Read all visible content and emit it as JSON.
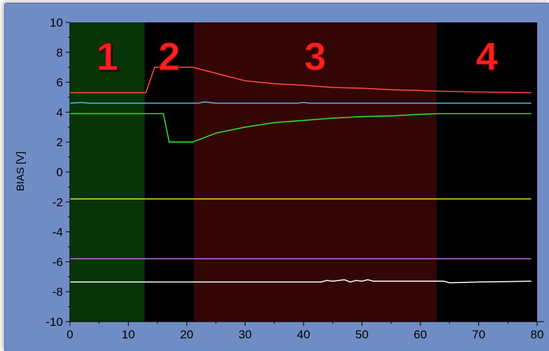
{
  "chart_data": {
    "type": "line",
    "xlabel": "",
    "ylabel": "BIAS [V]",
    "xlim": [
      0,
      80
    ],
    "ylim": [
      -10,
      10
    ],
    "x_ticks": [
      0,
      10,
      20,
      30,
      40,
      50,
      60,
      70,
      80
    ],
    "y_ticks": [
      10,
      8,
      6,
      4,
      2,
      0,
      -2,
      -4,
      -6,
      -8,
      -10
    ],
    "grid": false,
    "plot_background": "#000000",
    "regions": [
      {
        "label": "1",
        "x_start": 0,
        "x_end": 12.8,
        "color": "#073507"
      },
      {
        "label": "2",
        "x_start": 12.8,
        "x_end": 21.2,
        "color": "#000000"
      },
      {
        "label": "3",
        "x_start": 21.2,
        "x_end": 62.8,
        "color": "#340505"
      },
      {
        "label": "4",
        "x_start": 62.8,
        "x_end": 80,
        "color": "#000000"
      }
    ],
    "series": [
      {
        "color": "#ff4444",
        "points": [
          [
            0,
            5.3
          ],
          [
            13,
            5.3
          ],
          [
            14.5,
            7.0
          ],
          [
            21,
            7.0
          ],
          [
            25,
            6.6
          ],
          [
            30,
            6.1
          ],
          [
            35,
            5.9
          ],
          [
            40,
            5.8
          ],
          [
            45,
            5.65
          ],
          [
            50,
            5.6
          ],
          [
            55,
            5.5
          ],
          [
            60,
            5.45
          ],
          [
            63,
            5.4
          ],
          [
            70,
            5.35
          ],
          [
            79,
            5.3
          ]
        ]
      },
      {
        "color": "#4fb4e6",
        "points": [
          [
            0,
            4.6
          ],
          [
            2,
            4.65
          ],
          [
            3,
            4.6
          ],
          [
            22,
            4.6
          ],
          [
            23,
            4.68
          ],
          [
            25,
            4.6
          ],
          [
            39,
            4.6
          ],
          [
            40,
            4.65
          ],
          [
            41,
            4.6
          ],
          [
            79,
            4.6
          ]
        ]
      },
      {
        "color": "#30e030",
        "points": [
          [
            0,
            3.9
          ],
          [
            16,
            3.9
          ],
          [
            17,
            2.0
          ],
          [
            21,
            2.0
          ],
          [
            25,
            2.6
          ],
          [
            30,
            3.0
          ],
          [
            35,
            3.3
          ],
          [
            40,
            3.45
          ],
          [
            45,
            3.6
          ],
          [
            50,
            3.7
          ],
          [
            55,
            3.75
          ],
          [
            60,
            3.85
          ],
          [
            63,
            3.9
          ],
          [
            79,
            3.9
          ]
        ]
      },
      {
        "color": "#e8e820",
        "points": [
          [
            0,
            -1.8
          ],
          [
            79,
            -1.8
          ]
        ]
      },
      {
        "color": "#c060e0",
        "points": [
          [
            0,
            -5.8
          ],
          [
            79,
            -5.8
          ]
        ]
      },
      {
        "color": "#f0f0f0",
        "points": [
          [
            0,
            -7.35
          ],
          [
            43,
            -7.35
          ],
          [
            44,
            -7.25
          ],
          [
            45,
            -7.3
          ],
          [
            47,
            -7.2
          ],
          [
            48,
            -7.35
          ],
          [
            49,
            -7.25
          ],
          [
            50,
            -7.3
          ],
          [
            51,
            -7.2
          ],
          [
            52,
            -7.3
          ],
          [
            64,
            -7.3
          ],
          [
            65,
            -7.4
          ],
          [
            70,
            -7.35
          ],
          [
            79,
            -7.3
          ]
        ]
      }
    ]
  }
}
